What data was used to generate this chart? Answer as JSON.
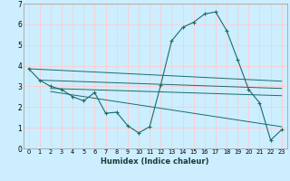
{
  "xlabel": "Humidex (Indice chaleur)",
  "bg_color": "#cceeff",
  "grid_color": "#ffcccc",
  "line_color": "#1a6b6b",
  "xlim": [
    -0.5,
    23.5
  ],
  "ylim": [
    0,
    7
  ],
  "xticks": [
    0,
    1,
    2,
    3,
    4,
    5,
    6,
    7,
    8,
    9,
    10,
    11,
    12,
    13,
    14,
    15,
    16,
    17,
    18,
    19,
    20,
    21,
    22,
    23
  ],
  "yticks": [
    0,
    1,
    2,
    3,
    4,
    5,
    6,
    7
  ],
  "main_x": [
    0,
    1,
    2,
    3,
    4,
    5,
    6,
    7,
    8,
    9,
    10,
    11,
    12,
    13,
    14,
    15,
    16,
    17,
    18,
    19,
    20,
    21,
    22,
    23
  ],
  "main_y": [
    3.85,
    3.3,
    3.0,
    2.85,
    2.5,
    2.3,
    2.7,
    1.7,
    1.75,
    1.1,
    0.75,
    1.05,
    3.05,
    5.2,
    5.85,
    6.1,
    6.5,
    6.6,
    5.7,
    4.3,
    2.85,
    2.2,
    0.4,
    0.9
  ],
  "flat_lines": [
    {
      "x": [
        0,
        23
      ],
      "y": [
        3.85,
        3.25
      ]
    },
    {
      "x": [
        1,
        23
      ],
      "y": [
        3.3,
        2.9
      ]
    },
    {
      "x": [
        2,
        23
      ],
      "y": [
        2.9,
        2.55
      ]
    },
    {
      "x": [
        2,
        23
      ],
      "y": [
        2.75,
        1.05
      ]
    }
  ]
}
